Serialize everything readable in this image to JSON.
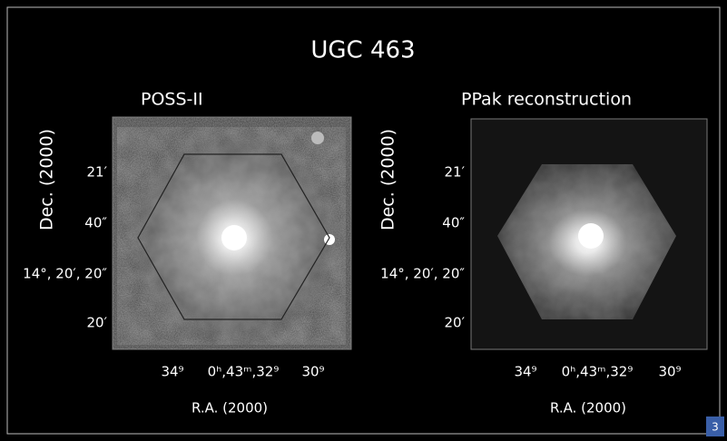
{
  "title": "UGC 463",
  "panels": [
    {
      "title": "POSS-II",
      "y_label": "Dec. (2000)",
      "y_ticks": [
        "21′",
        "40″",
        "14°, 20′, 20″",
        "20′"
      ],
      "x_ticks": [
        "34⁹",
        "0ʰ,43ᵐ,32⁹",
        "30⁹"
      ],
      "x_label": "R.A. (2000)"
    },
    {
      "title": "PPak reconstruction",
      "y_label": "Dec. (2000)",
      "y_ticks": [
        "21′",
        "40″",
        "14°, 20′, 20″",
        "20′"
      ],
      "x_ticks": [
        "34⁹",
        "0ʰ,43ᵐ,32⁹",
        "30⁹"
      ],
      "x_label": "R.A. (2000)"
    }
  ],
  "page_number": "3"
}
